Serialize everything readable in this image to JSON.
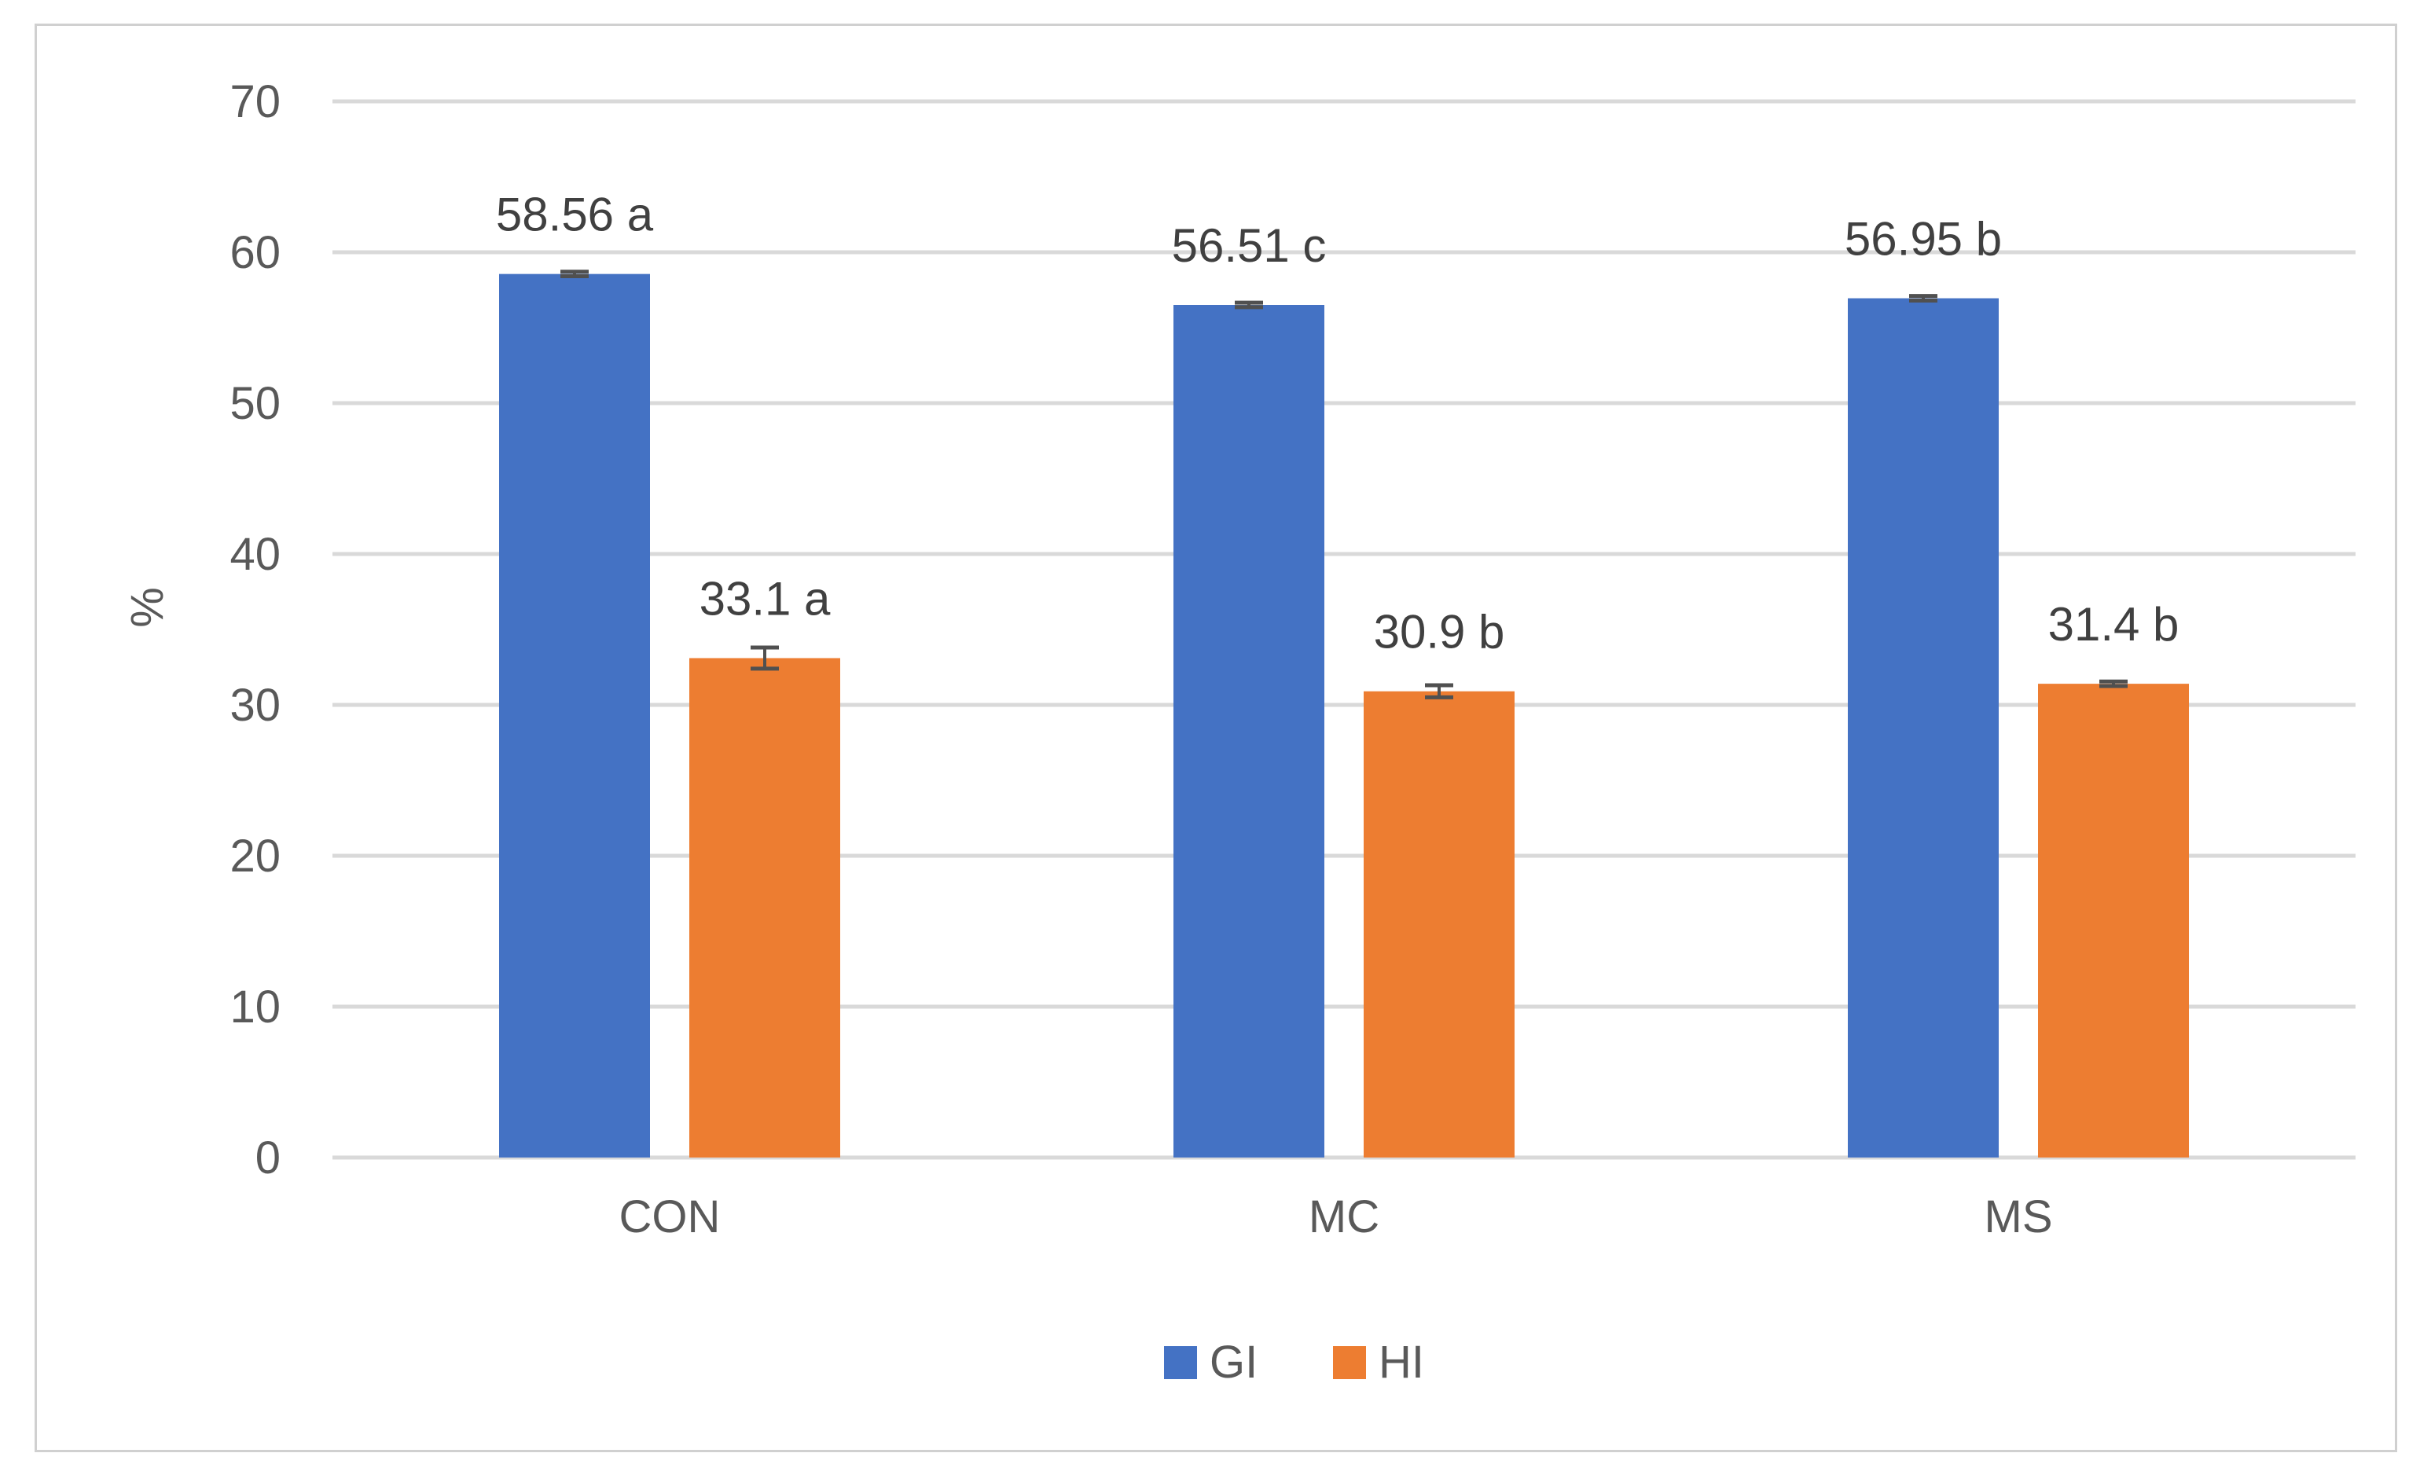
{
  "chart_data": {
    "type": "bar",
    "title": "",
    "xlabel": "",
    "ylabel": "%",
    "ylim": [
      0,
      70
    ],
    "yticks": [
      0,
      10,
      20,
      30,
      40,
      50,
      60,
      70
    ],
    "grid": true,
    "legend_position": "bottom",
    "categories": [
      "CON",
      "MC",
      "MS"
    ],
    "series": [
      {
        "name": "GI",
        "color": "#4472C4",
        "values": [
          58.56,
          56.51,
          56.95
        ],
        "errors": [
          0.15,
          0.15,
          0.15
        ],
        "labels": [
          "58.56 a",
          "56.51 c",
          "56.95 b"
        ]
      },
      {
        "name": "HI",
        "color": "#ED7D31",
        "values": [
          33.1,
          30.9,
          31.4
        ],
        "errors": [
          0.7,
          0.4,
          0.15
        ],
        "labels": [
          "33.1 a",
          "30.9 b",
          "31.4 b"
        ]
      }
    ]
  }
}
